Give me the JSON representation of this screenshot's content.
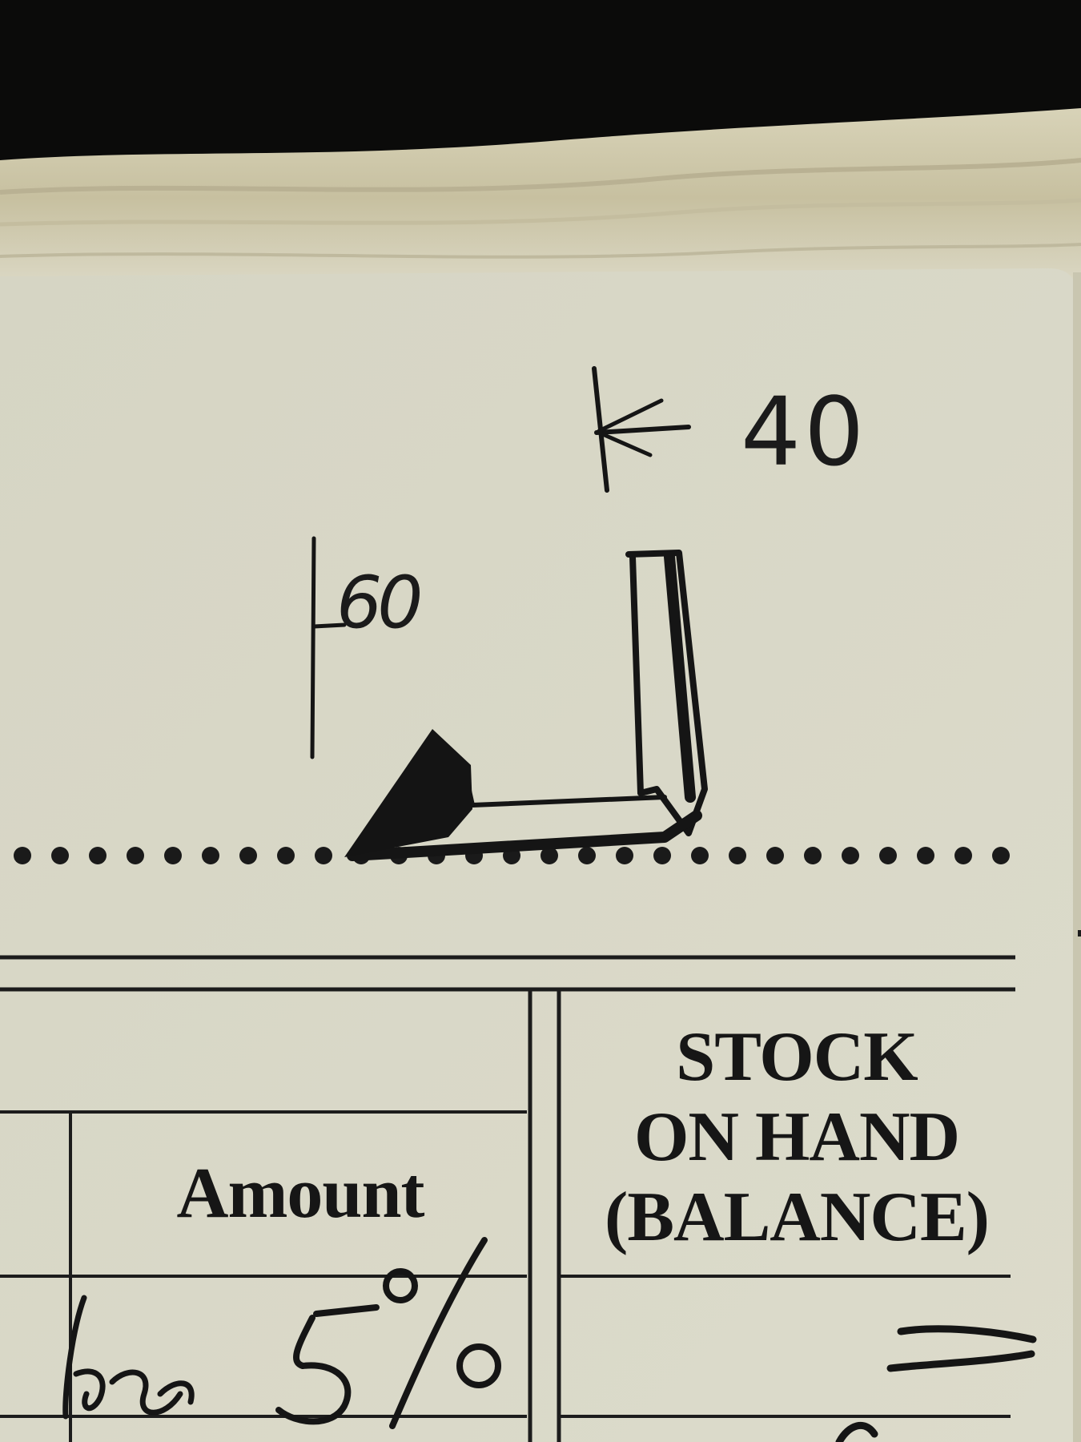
{
  "form": {
    "amount_header": "Amount",
    "stock_header": [
      "STOCK",
      "ON HAND",
      "(BALANCE)"
    ]
  },
  "sketch": {
    "dimension_top": "40",
    "dimension_left": "60"
  },
  "handwriting": {
    "amount_entry": "less 5%",
    "balance_mark": "="
  },
  "colors": {
    "paper": "#d9d8c6",
    "ink": "#161616",
    "background": "#0b0b0a"
  }
}
